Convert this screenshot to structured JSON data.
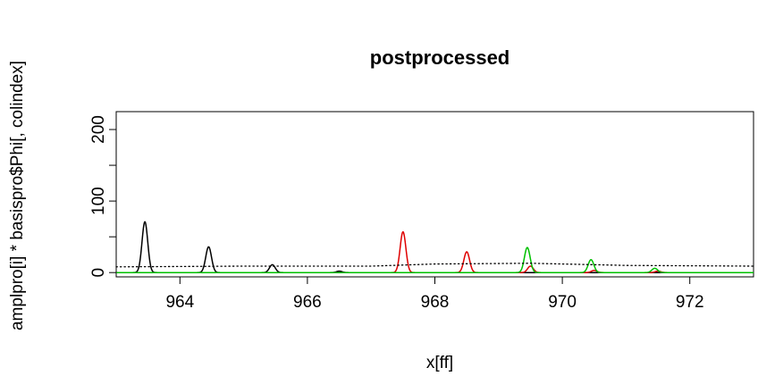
{
  "chart_data": {
    "type": "line",
    "title": "postprocessed",
    "xlabel": "x[ff]",
    "ylabel": "amplpro[i] * basispro$Phi[, colindex]",
    "xlim": [
      963.0,
      973.0
    ],
    "ylim": [
      -6,
      225
    ],
    "x_ticks": [
      964,
      966,
      968,
      970,
      972
    ],
    "x_tick_labels": [
      "964",
      "966",
      "968",
      "970",
      "972"
    ],
    "y_ticks": [
      0,
      50,
      100,
      150,
      200
    ],
    "y_tick_labels": [
      "0",
      "",
      "100",
      "",
      "200"
    ],
    "grid": false,
    "legend": "none",
    "peak_width": 0.045,
    "series": [
      {
        "color": "#000000",
        "line": "solid",
        "peaks": [
          {
            "x": 963.45,
            "y": 71
          },
          {
            "x": 964.45,
            "y": 36
          },
          {
            "x": 965.45,
            "y": 11
          },
          {
            "x": 966.5,
            "y": 2
          }
        ]
      },
      {
        "color": "#df0000",
        "line": "solid",
        "peaks": [
          {
            "x": 967.5,
            "y": 57
          },
          {
            "x": 968.5,
            "y": 29
          },
          {
            "x": 969.5,
            "y": 9
          },
          {
            "x": 970.5,
            "y": 3
          },
          {
            "x": 971.5,
            "y": 2
          }
        ]
      },
      {
        "color": "#00c000",
        "line": "solid",
        "peaks": [
          {
            "x": 969.45,
            "y": 35
          },
          {
            "x": 970.45,
            "y": 18
          },
          {
            "x": 971.45,
            "y": 6
          }
        ]
      },
      {
        "color": "#000000",
        "line": "dotted",
        "baseline": [
          {
            "x": 963.0,
            "y": 8
          },
          {
            "x": 965.0,
            "y": 9
          },
          {
            "x": 967.0,
            "y": 9
          },
          {
            "x": 968.0,
            "y": 12
          },
          {
            "x": 969.5,
            "y": 13
          },
          {
            "x": 971.0,
            "y": 10
          },
          {
            "x": 973.0,
            "y": 9
          }
        ]
      }
    ]
  }
}
